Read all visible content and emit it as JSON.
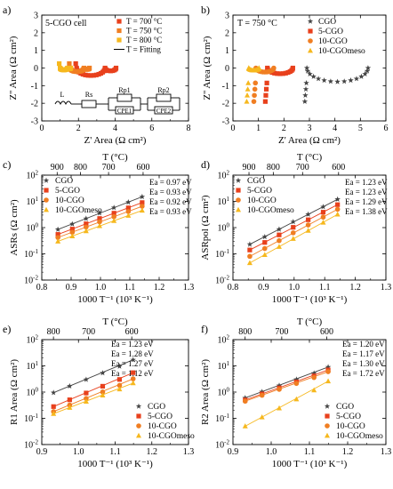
{
  "colors": {
    "cgo": "#444444",
    "c5": "#e8401c",
    "c10": "#f07e22",
    "c10m": "#f6b81e"
  },
  "chart_data": [
    {
      "panel": "a)",
      "type": "scatter",
      "inset_title": "5-CGO cell",
      "xlabel": "Z' Area (Ω cm²)",
      "ylabel": "Z'' Area (Ω cm²)",
      "xlim": [
        0,
        8
      ],
      "ylim": [
        -3,
        3
      ],
      "xticks": [
        "0",
        "2",
        "4",
        "6",
        "8"
      ],
      "yticks": [
        "-3",
        "-2",
        "-1",
        "0",
        "1",
        "2",
        "3"
      ],
      "legend": [
        "T = 700 °C",
        "T = 750 °C",
        "T = 800 °C",
        "T = Fitting"
      ],
      "circuit": {
        "L": "L",
        "Rs": "Rs",
        "Rp1": "Rp1",
        "Rp2": "Rp2",
        "CPE1": "CPE1",
        "CPE2": "CPE2"
      },
      "series": [
        {
          "name": "T = 700 °C",
          "x0": 1.9,
          "r1": 1.55,
          "r2": 0.6
        },
        {
          "name": "T = 750 °C",
          "x0": 1.55,
          "r1": 0.75,
          "r2": 0.3
        },
        {
          "name": "T = 800 °C",
          "x0": 1.0,
          "r1": 0.4,
          "r2": 0.18
        }
      ]
    },
    {
      "panel": "b)",
      "type": "scatter",
      "inset_title": "T = 750 °C",
      "xlabel": "Z' Area (Ω cm²)",
      "ylabel": "Z'' Area (Ω cm²)",
      "xlim": [
        0,
        6
      ],
      "ylim": [
        -3,
        3
      ],
      "xticks": [
        "0",
        "1",
        "2",
        "3",
        "4",
        "5",
        "6"
      ],
      "yticks": [
        "-3",
        "-2",
        "-1",
        "0",
        "1",
        "2",
        "3"
      ],
      "legend": [
        "CGO",
        "5-CGO",
        "10-CGO",
        "10-CGOmeso"
      ],
      "series": [
        {
          "name": "CGO",
          "x0": 2.9,
          "r": 1.2
        },
        {
          "name": "5-CGO",
          "x0": 1.35,
          "r": 0.5
        },
        {
          "name": "10-CGO",
          "x0": 0.9,
          "r": 0.35
        },
        {
          "name": "10-CGOmeso",
          "x0": 0.62,
          "r": 0.2
        }
      ]
    },
    {
      "panel": "c)",
      "type": "scatter",
      "log_y": true,
      "xlabel": "1000 T⁻¹ (10³ K⁻¹)",
      "ylabel": "ASRs",
      "ylabel_unit": " (Ω cm²)",
      "top_xlabel": "T (°C)",
      "xlim": [
        0.8,
        1.3
      ],
      "ylim_exp": [
        -2,
        2
      ],
      "xticks": [
        "0.8",
        "0.9",
        "1.0",
        "1.1",
        "1.2",
        "1.3"
      ],
      "top_ticks": [
        "900",
        "800",
        "700",
        "600"
      ],
      "legend": [
        "CGO",
        "5-CGO",
        "10-CGO",
        "10-CGOmeso"
      ],
      "ea_labels": [
        "Ea = 0.97 eV",
        "Ea = 0.93 eV",
        "Ea = 0.92 eV",
        "Ea = 0.93 eV"
      ],
      "x": [
        0.855,
        0.904,
        0.951,
        0.997,
        1.046,
        1.095,
        1.142
      ],
      "series": [
        {
          "name": "CGO",
          "start": 0.85,
          "end": 15.0
        },
        {
          "name": "5-CGO",
          "start": 0.55,
          "end": 9.0
        },
        {
          "name": "10-CGO",
          "start": 0.42,
          "end": 6.5
        },
        {
          "name": "10-CGOmeso",
          "start": 0.3,
          "end": 4.5
        }
      ]
    },
    {
      "panel": "d)",
      "type": "scatter",
      "log_y": true,
      "xlabel": "1000 T⁻¹ (10³ K⁻¹)",
      "ylabel": "ASRpol",
      "ylabel_unit": " (Ω cm²)",
      "top_xlabel": "T (°C)",
      "xlim": [
        0.8,
        1.3
      ],
      "ylim_exp": [
        -2,
        2
      ],
      "xticks": [
        "0.8",
        "0.9",
        "1.0",
        "1.1",
        "1.2",
        "1.3"
      ],
      "top_ticks": [
        "900",
        "800",
        "700",
        "600"
      ],
      "legend": [
        "CGO",
        "5-CGO",
        "10-CGO",
        "10-CGOmeso"
      ],
      "ea_labels": [
        "Ea = 1.23 eV",
        "Ea = 1.23 eV",
        "Ea = 1.29 eV",
        "Ea = 1.38 eV"
      ],
      "x": [
        0.855,
        0.904,
        0.951,
        0.997,
        1.046,
        1.095,
        1.142
      ],
      "series": [
        {
          "name": "CGO",
          "start": 0.23,
          "end": 12.0
        },
        {
          "name": "5-CGO",
          "start": 0.14,
          "end": 7.5
        },
        {
          "name": "10-CGO",
          "start": 0.08,
          "end": 5.0
        },
        {
          "name": "10-CGOmeso",
          "start": 0.045,
          "end": 3.2
        }
      ]
    },
    {
      "panel": "e)",
      "type": "scatter",
      "log_y": true,
      "xlabel": "1000 T⁻¹ (10³ K⁻¹)",
      "ylabel": "R1",
      "ylabel_unit": " Area (Ω cm²)",
      "top_xlabel": "T (°C)",
      "xlim": [
        0.9,
        1.3
      ],
      "ylim_exp": [
        -2,
        2
      ],
      "xticks": [
        "0.9",
        "1.0",
        "1.1",
        "1.2",
        "1.3"
      ],
      "top_ticks": [
        "800",
        "700",
        "600"
      ],
      "legend": [
        "CGO",
        "5-CGO",
        "10-CGO",
        "10-CGOmeso"
      ],
      "ea_labels": [
        "Ea = 1.23 eV",
        "Ea = 1.28 eV",
        "Ea = 1.27 eV",
        "Ea = 1.12 eV"
      ],
      "x": [
        0.932,
        0.976,
        1.021,
        1.066,
        1.112,
        1.149
      ],
      "series": [
        {
          "name": "CGO",
          "start": 0.95,
          "end": 17.0
        },
        {
          "name": "5-CGO",
          "start": 0.28,
          "end": 5.5
        },
        {
          "name": "10-CGO",
          "start": 0.18,
          "end": 3.2
        },
        {
          "name": "10-CGOmeso",
          "start": 0.15,
          "end": 2.2
        }
      ]
    },
    {
      "panel": "f)",
      "type": "scatter",
      "log_y": true,
      "xlabel": "1000 T⁻¹ (10³ K⁻¹)",
      "ylabel": "R2",
      "ylabel_unit": " Area (Ω cm²)",
      "top_xlabel": "T (°C)",
      "xlim": [
        0.9,
        1.3
      ],
      "ylim_exp": [
        -2,
        2
      ],
      "xticks": [
        "0.9",
        "1.0",
        "1.1",
        "1.2",
        "1.3"
      ],
      "top_ticks": [
        "800",
        "700",
        "600"
      ],
      "legend": [
        "CGO",
        "5-CGO",
        "10-CGO",
        "10-CGOmeso"
      ],
      "ea_labels": [
        "Ea = 1.20 eV",
        "Ea = 1.17 eV",
        "Ea = 1.30 eV",
        "Ea = 1.72 eV"
      ],
      "x": [
        0.932,
        0.976,
        1.021,
        1.066,
        1.112,
        1.149
      ],
      "series": [
        {
          "name": "CGO",
          "start": 0.6,
          "end": 9.0
        },
        {
          "name": "5-CGO",
          "start": 0.5,
          "end": 7.0
        },
        {
          "name": "10-CGO",
          "start": 0.45,
          "end": 6.0
        },
        {
          "name": "10-CGOmeso",
          "start": 0.05,
          "end": 2.6
        }
      ]
    }
  ]
}
